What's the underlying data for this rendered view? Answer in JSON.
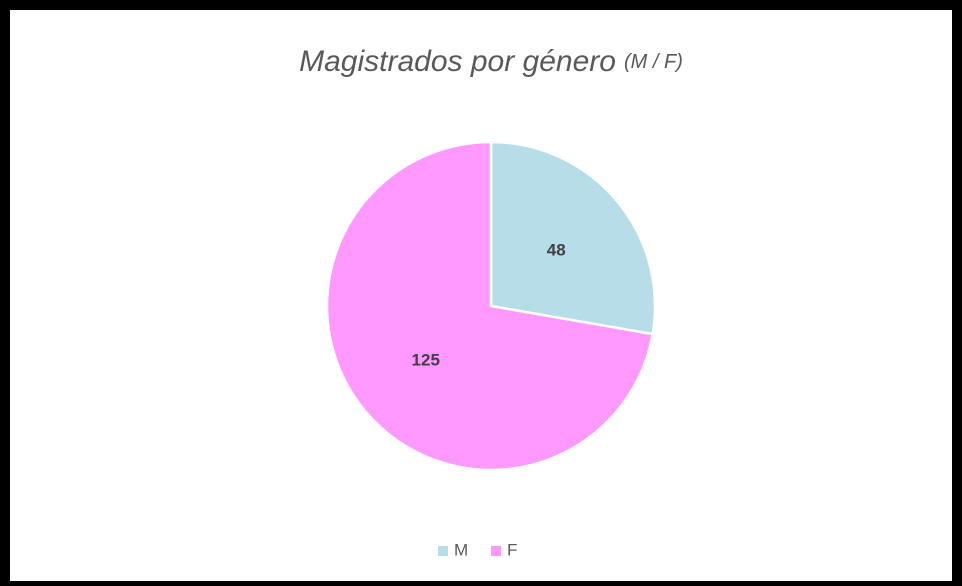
{
  "chart_data": {
    "type": "pie",
    "title": "Magistrados por género",
    "title_suffix": "(M / F)",
    "categories": [
      "M",
      "F"
    ],
    "values": [
      48,
      125
    ],
    "colors": [
      "#b7dde8",
      "#ff99ff"
    ],
    "legend": "bottom"
  }
}
